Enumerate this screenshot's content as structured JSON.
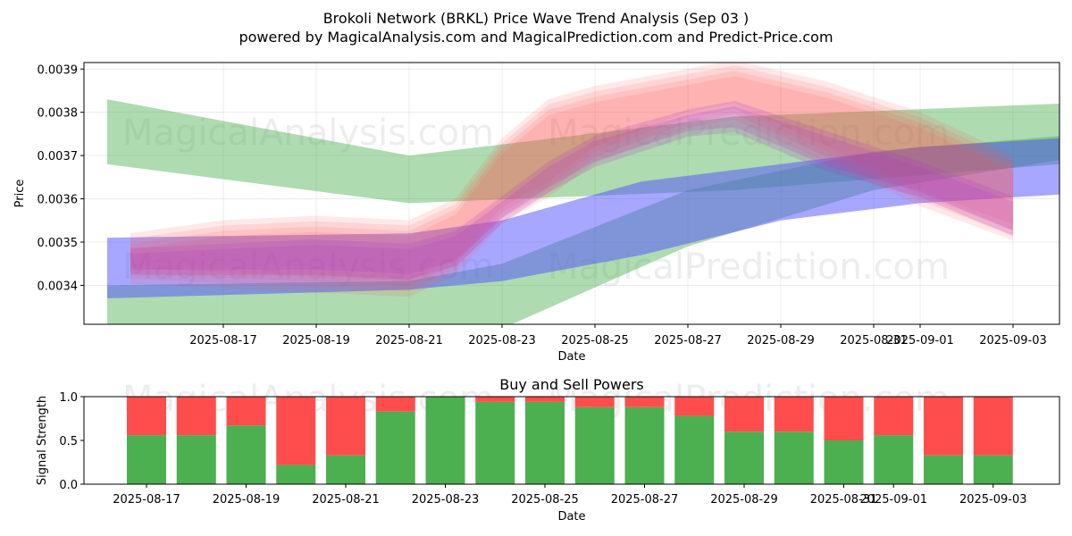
{
  "chart_data": [
    {
      "type": "area",
      "title_line1": "Brokoli Network (BRKL) Price Wave Trend Analysis (Sep 03 )",
      "title_line2": "powered by MagicalAnalysis.com and MagicalPrediction.com and Predict-Price.com",
      "xlabel": "Date",
      "ylabel": "Price",
      "grid": true,
      "ylim": [
        0.00331,
        0.003915
      ],
      "xlim": [
        "2025-08-14",
        "2025-09-04"
      ],
      "x_ticks": [
        "2025-08-17",
        "2025-08-19",
        "2025-08-21",
        "2025-08-23",
        "2025-08-25",
        "2025-08-27",
        "2025-08-29",
        "2025-08-31",
        "2025-09-01",
        "2025-09-03"
      ],
      "y_ticks": [
        "0.0034",
        "0.0035",
        "0.0036",
        "0.0037",
        "0.0038",
        "0.0039"
      ],
      "watermarks": [
        "MagicalAnalysis.com",
        "MagicalPrediction.com"
      ],
      "series": [
        {
          "name": "green-band-falling",
          "color": "#4caf50",
          "x": [
            "2025-08-14T12:00",
            "2025-08-21",
            "2025-08-28",
            "2025-09-04"
          ],
          "upper": [
            0.00383,
            0.0037,
            0.00379,
            0.00382
          ],
          "lower": [
            0.00368,
            0.00359,
            0.00362,
            0.00368
          ]
        },
        {
          "name": "green-band-rising",
          "color": "#4caf50",
          "x": [
            "2025-08-14T12:00",
            "2025-08-21",
            "2025-08-23",
            "2025-08-27",
            "2025-08-31",
            "2025-09-04"
          ],
          "upper": [
            0.0034,
            0.00341,
            0.00345,
            0.00362,
            0.00371,
            0.003745
          ],
          "lower": [
            0.0032,
            0.0032,
            0.0033,
            0.00349,
            0.00362,
            0.00369
          ]
        },
        {
          "name": "blue-band",
          "color": "#5050ff",
          "x": [
            "2025-08-14T12:00",
            "2025-08-21",
            "2025-08-23",
            "2025-08-26",
            "2025-08-29",
            "2025-09-01",
            "2025-09-04"
          ],
          "upper": [
            0.00351,
            0.00352,
            0.00355,
            0.00364,
            0.00368,
            0.00372,
            0.00374
          ],
          "lower": [
            0.00337,
            0.00339,
            0.00341,
            0.00347,
            0.00355,
            0.00359,
            0.00361
          ]
        },
        {
          "name": "red-wave",
          "color": "#ff4d4d",
          "x": [
            "2025-08-15",
            "2025-08-17",
            "2025-08-19",
            "2025-08-21",
            "2025-08-22",
            "2025-08-23",
            "2025-08-24",
            "2025-08-25",
            "2025-08-27",
            "2025-08-28",
            "2025-08-30",
            "2025-09-01",
            "2025-09-03"
          ],
          "upper": [
            0.0035,
            0.00353,
            0.00354,
            0.00353,
            0.00358,
            0.00372,
            0.00381,
            0.00384,
            0.00388,
            0.0039,
            0.00385,
            0.00378,
            0.00368
          ],
          "lower": [
            0.00342,
            0.00341,
            0.0034,
            0.00339,
            0.00344,
            0.00356,
            0.00362,
            0.0037,
            0.00378,
            0.0038,
            0.0037,
            0.0036,
            0.00352
          ]
        },
        {
          "name": "purple-wave",
          "color": "#b040c0",
          "x": [
            "2025-08-15",
            "2025-08-17",
            "2025-08-19",
            "2025-08-21",
            "2025-08-22",
            "2025-08-23",
            "2025-08-24",
            "2025-08-25",
            "2025-08-27",
            "2025-08-28",
            "2025-08-30",
            "2025-09-01",
            "2025-09-03"
          ],
          "upper": [
            0.00348,
            0.00349,
            0.0035,
            0.00349,
            0.00352,
            0.0036,
            0.00368,
            0.00374,
            0.0038,
            0.00382,
            0.00375,
            0.00368,
            0.0036
          ],
          "lower": [
            0.00343,
            0.00343,
            0.00343,
            0.00342,
            0.00345,
            0.00355,
            0.00362,
            0.00368,
            0.00375,
            0.00376,
            0.00367,
            0.00361,
            0.00352
          ]
        }
      ]
    },
    {
      "type": "bar",
      "title": "Buy and Sell Powers",
      "xlabel": "Date",
      "ylabel": "Signal Strength",
      "ylim": [
        0,
        1.0
      ],
      "y_ticks": [
        "0.0",
        "0.5",
        "1.0"
      ],
      "x_ticks": [
        "2025-08-17",
        "2025-08-19",
        "2025-08-21",
        "2025-08-23",
        "2025-08-25",
        "2025-08-27",
        "2025-08-29",
        "2025-08-31",
        "2025-09-01",
        "2025-09-03"
      ],
      "buy_color": "#4caf50",
      "sell_color": "#ff4d4d",
      "categories": [
        "2025-08-17",
        "2025-08-18",
        "2025-08-19",
        "2025-08-20",
        "2025-08-21",
        "2025-08-22",
        "2025-08-23",
        "2025-08-24",
        "2025-08-25",
        "2025-08-26",
        "2025-08-27",
        "2025-08-28",
        "2025-08-29",
        "2025-08-30",
        "2025-08-31",
        "2025-09-01",
        "2025-09-02",
        "2025-09-03"
      ],
      "series": [
        {
          "name": "Buy",
          "values": [
            0.56,
            0.56,
            0.67,
            0.22,
            0.33,
            0.83,
            1.0,
            0.94,
            0.94,
            0.88,
            0.88,
            0.78,
            0.6,
            0.6,
            0.5,
            0.56,
            0.33,
            0.33
          ]
        },
        {
          "name": "Sell",
          "values": [
            0.44,
            0.44,
            0.33,
            0.78,
            0.67,
            0.17,
            0.0,
            0.06,
            0.06,
            0.12,
            0.12,
            0.22,
            0.4,
            0.4,
            0.5,
            0.44,
            0.67,
            0.67
          ]
        }
      ]
    }
  ]
}
